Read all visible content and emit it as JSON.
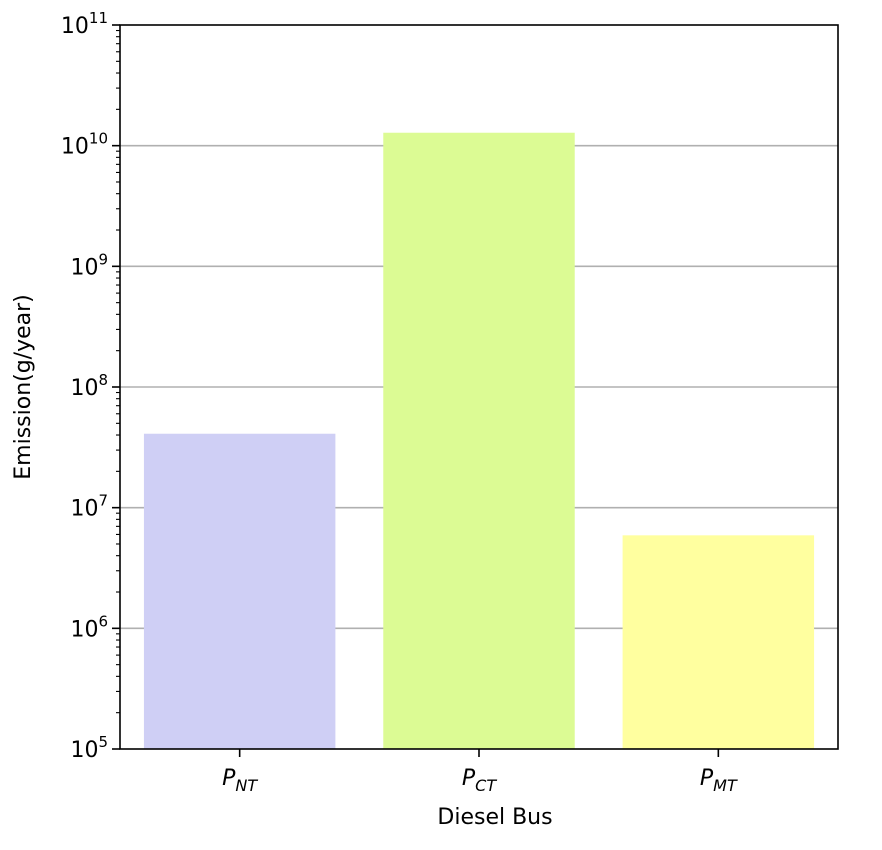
{
  "chart_data": {
    "type": "bar",
    "yscale": "log",
    "categories": [
      {
        "main": "P",
        "sub": "NT"
      },
      {
        "main": "P",
        "sub": "CT"
      },
      {
        "main": "P",
        "sub": "MT"
      }
    ],
    "values": [
      41000000,
      12800000000,
      5900000
    ],
    "colors": [
      "#cfcff5",
      "#dcfb94",
      "#ffff9f"
    ],
    "xlabel": "Diesel Bus",
    "ylabel": "Emission(g/year)",
    "ylim": [
      100000,
      100000000000
    ],
    "yticks": [
      {
        "base": "10",
        "exp": "5"
      },
      {
        "base": "10",
        "exp": "6"
      },
      {
        "base": "10",
        "exp": "7"
      },
      {
        "base": "10",
        "exp": "8"
      },
      {
        "base": "10",
        "exp": "9"
      },
      {
        "base": "10",
        "exp": "10"
      },
      {
        "base": "10",
        "exp": "11"
      }
    ],
    "grid": "horizontal",
    "grid_color": "#b0b0b0"
  }
}
